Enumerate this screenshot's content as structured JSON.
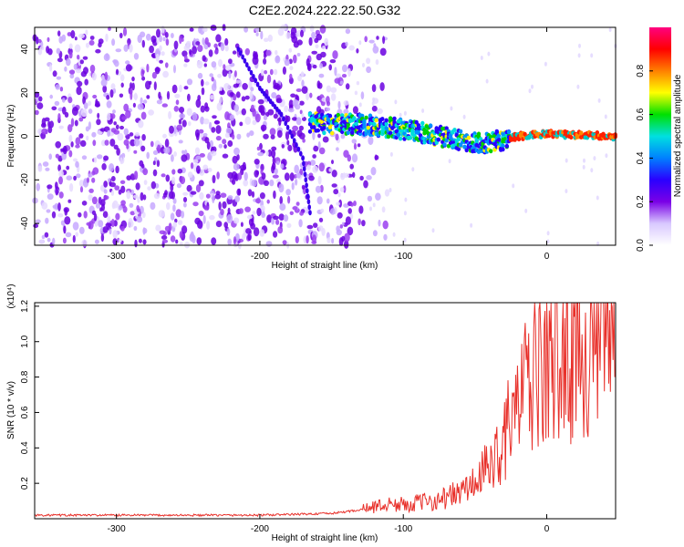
{
  "title": "C2E2.2024.222.22.50.G32",
  "chart_data": [
    {
      "type": "heatmap",
      "xlabel": "Height of straight line (km)",
      "ylabel": "Frequency (Hz)",
      "xlim": [
        -357,
        48
      ],
      "ylim": [
        -50,
        50
      ],
      "xticks": [
        -300,
        -200,
        -100,
        0
      ],
      "yticks": [
        -40,
        -20,
        0,
        20,
        40
      ],
      "colorbar": {
        "label": "Normalized spectral amplitude",
        "ticks": [
          0.0,
          0.2,
          0.4,
          0.6,
          0.8
        ],
        "range": [
          0,
          1
        ],
        "colormap": [
          "#ffffff",
          "#d8c8ff",
          "#7a00e6",
          "#2a00ff",
          "#0080ff",
          "#00e0e0",
          "#00e000",
          "#ffff00",
          "#ff8000",
          "#ff0000",
          "#ff0080"
        ]
      },
      "features": {
        "noise_region_x": [
          -357,
          -135
        ],
        "signal_band": [
          {
            "x": -160,
            "f": 6
          },
          {
            "x": -120,
            "f": 5
          },
          {
            "x": -90,
            "f": 2
          },
          {
            "x": -60,
            "f": -2
          },
          {
            "x": -40,
            "f": -3
          },
          {
            "x": -20,
            "f": 0
          },
          {
            "x": 0,
            "f": 1
          },
          {
            "x": 48,
            "f": 0
          }
        ],
        "curved_arc": [
          {
            "x": -215,
            "f": 40
          },
          {
            "x": -200,
            "f": 22
          },
          {
            "x": -185,
            "f": 10
          },
          {
            "x": -170,
            "f": -10
          },
          {
            "x": -165,
            "f": -35
          }
        ]
      }
    },
    {
      "type": "line",
      "xlabel": "Height of straight line (km)",
      "ylabel": "SNR (10 * v/v)",
      "y_multiplier": "(x10⁴)",
      "xlim": [
        -357,
        48
      ],
      "ylim": [
        0,
        1.22
      ],
      "xticks": [
        -300,
        -200,
        -100,
        0
      ],
      "yticks": [
        0.2,
        0.4,
        0.6,
        0.8,
        1.0,
        1.2
      ],
      "color": "#e8302a",
      "series": [
        {
          "x": [
            -357,
            -300,
            -250,
            -200,
            -150,
            -130,
            -120,
            -110,
            -100,
            -90,
            -80,
            -70,
            -60,
            -50,
            -45,
            -40,
            -35,
            -30,
            -25,
            -20,
            -15,
            -10,
            -5,
            0,
            5,
            10,
            15,
            20,
            25,
            30,
            35,
            40,
            48
          ],
          "values": [
            0.02,
            0.02,
            0.02,
            0.02,
            0.03,
            0.05,
            0.07,
            0.08,
            0.08,
            0.09,
            0.1,
            0.12,
            0.15,
            0.2,
            0.25,
            0.3,
            0.36,
            0.45,
            0.55,
            0.65,
            0.72,
            0.78,
            0.82,
            0.85,
            0.88,
            0.9,
            0.92,
            0.95,
            0.97,
            0.99,
            1.02,
            1.05,
            1.08
          ]
        }
      ]
    }
  ]
}
